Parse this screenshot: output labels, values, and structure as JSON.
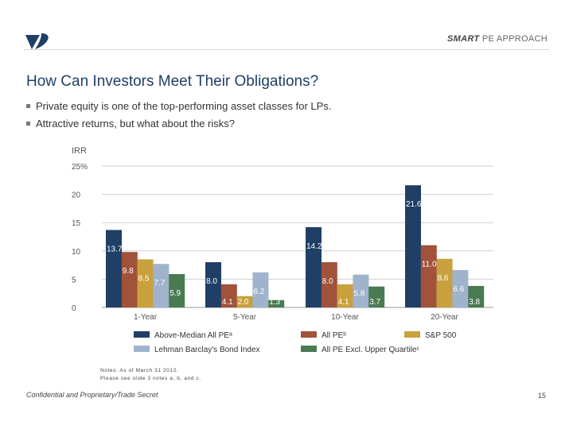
{
  "header": {
    "brand_bold": "SMART",
    "brand_rest": "PE APPROACH",
    "logo_color": "#1f3f66"
  },
  "title": "How Can Investors Meet Their Obligations?",
  "bullets": [
    "Private equity is one of the top-performing asset classes for LPs.",
    "Attractive returns, but what about the risks?"
  ],
  "chart_data": {
    "type": "bar",
    "ylabel": "IRR",
    "yticks": [
      "0",
      "5",
      "10",
      "15",
      "20",
      "25%"
    ],
    "ylim": [
      0,
      25
    ],
    "categories": [
      "1-Year",
      "5-Year",
      "10-Year",
      "20-Year"
    ],
    "series": [
      {
        "name": "Above-Median All PEᵃ",
        "color": "#1f3f66",
        "values": [
          13.7,
          8.0,
          14.2,
          21.6
        ],
        "labels": [
          "13.7",
          "8.0",
          "14.2",
          "21.6"
        ]
      },
      {
        "name": "All PEᵇ",
        "color": "#a0523a",
        "values": [
          9.8,
          4.1,
          8.0,
          11.0
        ],
        "labels": [
          "9.8",
          "4.1",
          "8.0",
          "11.0"
        ]
      },
      {
        "name": "S&P 500",
        "color": "#c9a13c",
        "values": [
          8.5,
          2.0,
          4.1,
          8.6
        ],
        "labels": [
          "8.5",
          "2.0",
          "4.1",
          "8.6"
        ]
      },
      {
        "name": "Lehman Barclay's Bond Index",
        "color": "#9fb4cc",
        "values": [
          7.7,
          6.2,
          5.8,
          6.6
        ],
        "labels": [
          "7.7",
          "6.2",
          "5.8",
          "6.6"
        ]
      },
      {
        "name": "All PE Excl. Upper Quartileᶜ",
        "color": "#4a7a52",
        "values": [
          5.9,
          1.3,
          3.7,
          3.8
        ],
        "labels": [
          "5.9",
          "1.3",
          "3.7",
          "3.8"
        ]
      }
    ],
    "grid": true,
    "legend_position": "bottom"
  },
  "notes": {
    "line1": "Notes: As of March 31 2012.",
    "line2": "Please see slide 3 notes a, b, and c."
  },
  "footer": {
    "confidential": "Confidential and Proprietary/Trade Secret",
    "page": "15"
  }
}
